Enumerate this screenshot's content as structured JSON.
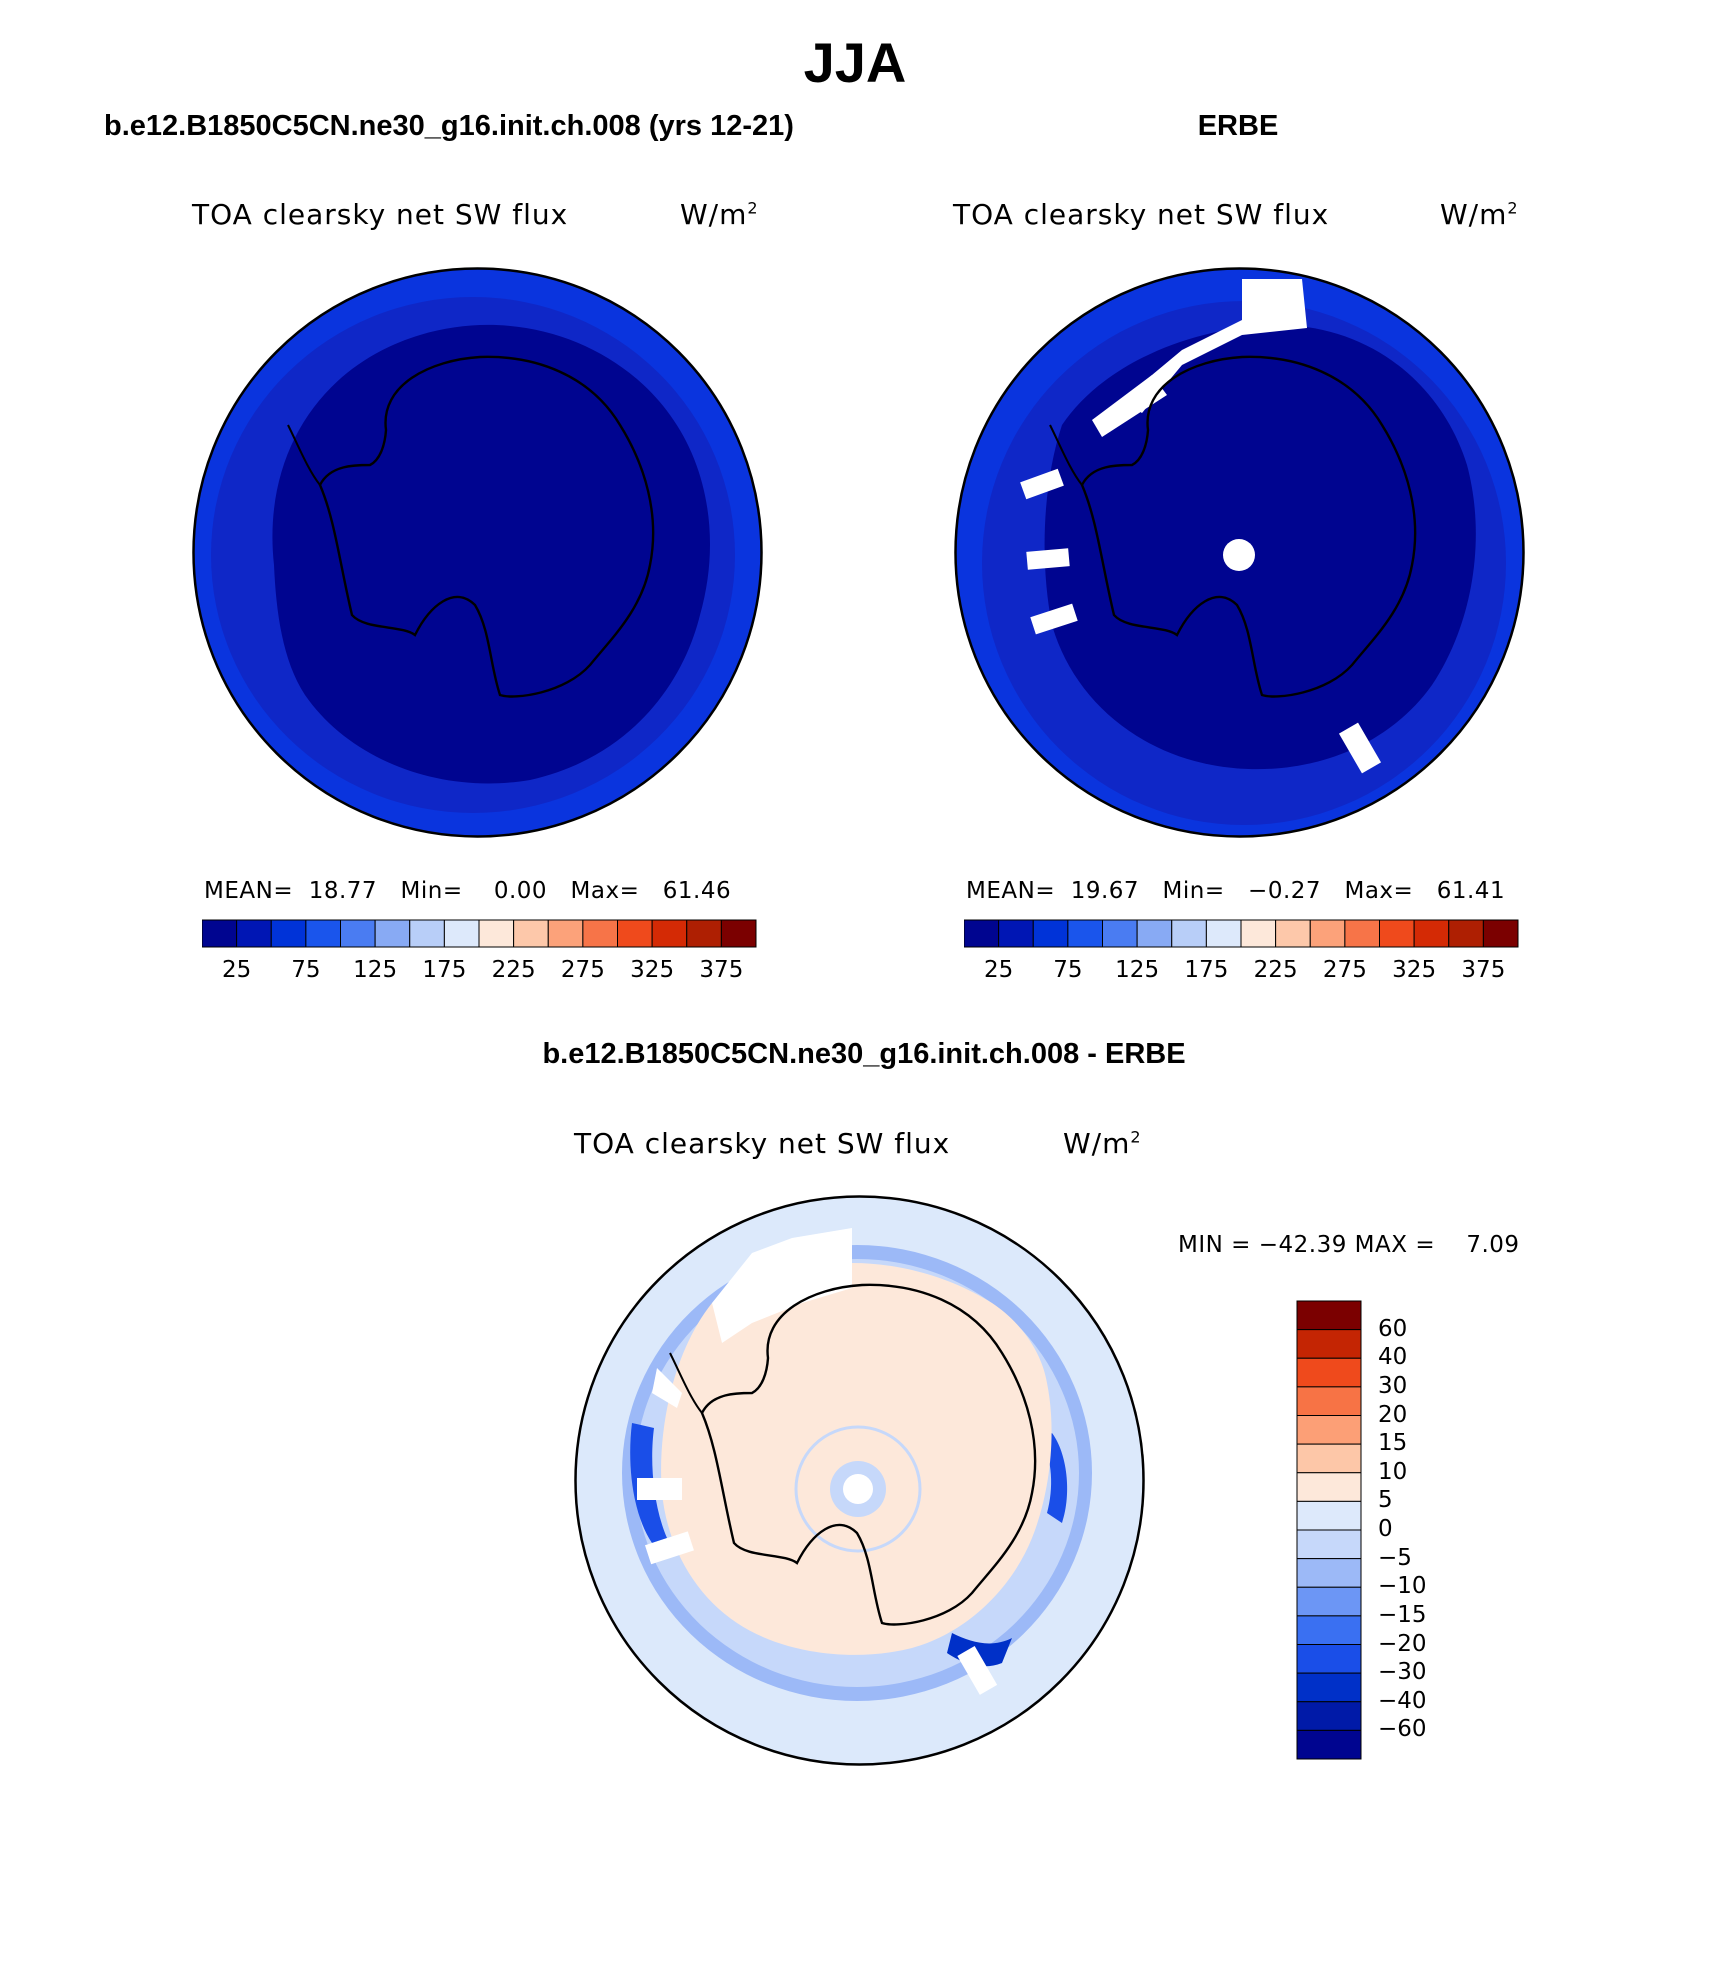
{
  "figure": {
    "title": "JJA"
  },
  "chart_data": [
    {
      "type": "heatmap",
      "projection": "south polar stereographic",
      "title": "b.e12.B1850C5CN.ne30_g16.init.ch.008 (yrs 12-21)",
      "variable": "TOA clearsky net SW flux",
      "units": "W/m",
      "units_exp": "2",
      "stats": {
        "mean_label": "MEAN=",
        "mean": "18.77",
        "min_label": "Min=",
        "min": "0.00",
        "max_label": "Max=",
        "max": "61.46"
      },
      "colorbar": {
        "orientation": "horizontal",
        "tick_labels": [
          "25",
          "75",
          "125",
          "175",
          "225",
          "275",
          "325",
          "375"
        ]
      },
      "field_description": "~10–25 W/m² over Antarctica and interior, ~40–61 W/m² in outer ring"
    },
    {
      "type": "heatmap",
      "projection": "south polar stereographic",
      "title": "ERBE",
      "variable": "TOA clearsky net SW flux",
      "units": "W/m",
      "units_exp": "2",
      "stats": {
        "mean_label": "MEAN=",
        "mean": "19.67",
        "min_label": "Min=",
        "min": "−0.27",
        "max_label": "Max=",
        "max": "61.41"
      },
      "colorbar": {
        "orientation": "horizontal",
        "tick_labels": [
          "25",
          "75",
          "125",
          "175",
          "225",
          "275",
          "325",
          "375"
        ]
      },
      "missing_data": true
    },
    {
      "type": "heatmap",
      "projection": "south polar stereographic",
      "title": "b.e12.B1850C5CN.ne30_g16.init.ch.008 - ERBE",
      "variable": "TOA clearsky net SW flux",
      "units": "W/m",
      "units_exp": "2",
      "stats": {
        "min_label": "MIN =",
        "min": "−42.39",
        "max_label": "MAX =",
        "max": "7.09"
      },
      "colorbar": {
        "orientation": "vertical",
        "tick_labels": [
          "60",
          "40",
          "30",
          "20",
          "15",
          "10",
          "5",
          "0",
          "−5",
          "−10",
          "−15",
          "−20",
          "−30",
          "−40",
          "−60"
        ]
      }
    }
  ],
  "colors": {
    "abs_scale": [
      "#000590",
      "#0016b4",
      "#0033d8",
      "#1a55ec",
      "#4a7cf2",
      "#88aaf4",
      "#b8cef8",
      "#dde9fb",
      "#fde8da",
      "#fdc8aa",
      "#fca27a",
      "#f77448",
      "#ef4a1c",
      "#d42a05",
      "#ae1f02",
      "#7b0000"
    ],
    "diff_scale": [
      "#000590",
      "#001aa8",
      "#0030c8",
      "#1a4ee8",
      "#3a70f2",
      "#6c96f5",
      "#9cb9f7",
      "#c6d8fa",
      "#dde9fb",
      "#fde8da",
      "#fdc7a8",
      "#fc9f76",
      "#f77345",
      "#ef4a1c",
      "#c42503",
      "#7b0000"
    ],
    "land_mean_model": "#000590",
    "ring_model": "#0a2fd8",
    "diff_background": "#dce9fb",
    "diff_positive": "#fde8da"
  }
}
